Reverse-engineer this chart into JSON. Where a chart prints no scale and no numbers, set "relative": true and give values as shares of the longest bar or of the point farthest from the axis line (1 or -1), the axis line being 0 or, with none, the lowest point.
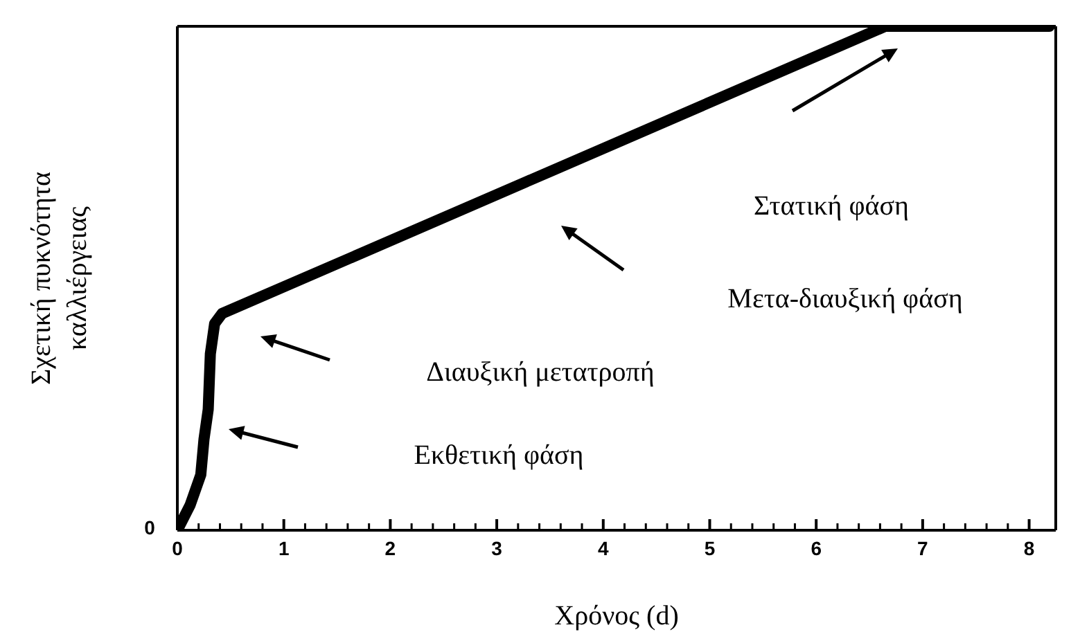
{
  "chart_data": {
    "type": "line",
    "relative": true,
    "xlabel": "Χρόνος (d)",
    "ylabel": "Σχετική πυκνότητα καλλιέργειας",
    "xlim": [
      0,
      8.25
    ],
    "xticks": [
      0,
      {
        "value": 0.2,
        "label": null
      },
      {
        "value": 0.4,
        "label": null
      },
      {
        "value": 0.6,
        "label": null
      },
      {
        "value": 0.8,
        "label": null
      },
      1,
      {
        "value": 1.2,
        "label": null
      },
      {
        "value": 1.4,
        "label": null
      },
      {
        "value": 1.6,
        "label": null
      },
      {
        "value": 1.8,
        "label": null
      },
      2,
      {
        "value": 2.2,
        "label": null
      },
      {
        "value": 2.4,
        "label": null
      },
      {
        "value": 2.6,
        "label": null
      },
      {
        "value": 2.8,
        "label": null
      },
      3,
      {
        "value": 3.2,
        "label": null
      },
      {
        "value": 3.4,
        "label": null
      },
      {
        "value": 3.6,
        "label": null
      },
      {
        "value": 3.8,
        "label": null
      },
      4,
      {
        "value": 4.2,
        "label": null
      },
      {
        "value": 4.4,
        "label": null
      },
      {
        "value": 4.6,
        "label": null
      },
      {
        "value": 4.8,
        "label": null
      },
      5,
      {
        "value": 5.2,
        "label": null
      },
      {
        "value": 5.4,
        "label": null
      },
      {
        "value": 5.6,
        "label": null
      },
      {
        "value": 5.8,
        "label": null
      },
      6,
      {
        "value": 6.2,
        "label": null
      },
      {
        "value": 6.4,
        "label": null
      },
      {
        "value": 6.6,
        "label": null
      },
      {
        "value": 6.8,
        "label": null
      },
      7,
      {
        "value": 7.2,
        "label": null
      },
      {
        "value": 7.4,
        "label": null
      },
      {
        "value": 7.6,
        "label": null
      },
      {
        "value": 7.8,
        "label": null
      },
      8
    ],
    "x": [
      0,
      0.12,
      0.22,
      0.25,
      0.29,
      0.31,
      0.35,
      0.42,
      6.65,
      8.19
    ],
    "series": [
      {
        "color": "#000000",
        "values": [
          0,
          0.05,
          0.11,
          0.18,
          0.24,
          0.35,
          0.41,
          0.43,
          1,
          1
        ]
      }
    ],
    "marker": "none",
    "line_style": "solid",
    "annotations": [
      "0",
      "Στατική φάση",
      "Μετα-διαυξική φάση",
      "Διαυξική μετατροπή",
      "Εκθετική φάση"
    ]
  }
}
